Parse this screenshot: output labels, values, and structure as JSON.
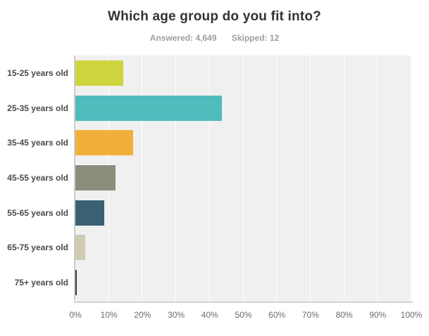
{
  "header": {
    "title": "Which age group do you fit into?",
    "answered_label": "Answered: 4,649",
    "skipped_label": "Skipped: 12"
  },
  "chart_data": {
    "type": "bar",
    "orientation": "horizontal",
    "title": "Which age group do you fit into?",
    "categories": [
      "15-25 years old",
      "25-35 years old",
      "35-45 years old",
      "45-55 years old",
      "55-65 years old",
      "65-75 years old",
      "75+ years old"
    ],
    "values": [
      14.3,
      43.7,
      17.2,
      12.0,
      8.7,
      3.0,
      0.5
    ],
    "bar_colors": [
      "#cdd43e",
      "#50bcbe",
      "#f0b03b",
      "#8a8e7d",
      "#3a6173",
      "#cecab4",
      "#3c3c33"
    ],
    "xlabel": "",
    "ylabel": "",
    "xlim": [
      0,
      100
    ],
    "x_tick_labels": [
      "0%",
      "10%",
      "20%",
      "30%",
      "40%",
      "50%",
      "60%",
      "70%",
      "80%",
      "90%",
      "100%"
    ],
    "grid": true,
    "legend": false,
    "plot_background": "#f0f0f0",
    "gridline_color": "#ffffff"
  }
}
